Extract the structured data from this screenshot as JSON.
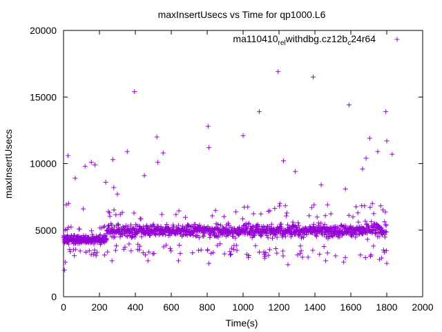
{
  "chart_data": {
    "type": "scatter",
    "title": "maxInsertUsecs vs Time for qp1000.L6",
    "xlabel": "Time(s)",
    "ylabel": "maxInsertUsecs",
    "xlim": [
      0,
      2000
    ],
    "ylim": [
      0,
      20000
    ],
    "x_ticks": [
      0,
      200,
      400,
      600,
      800,
      1000,
      1200,
      1400,
      1600,
      1800,
      2000
    ],
    "y_ticks": [
      0,
      5000,
      10000,
      15000,
      20000
    ],
    "grid": false,
    "legend_position": "top-right",
    "marker": "+",
    "series": [
      {
        "name": "ma110410_rel_withdbg.cz12b_c24r64",
        "name_parts": [
          "ma110410",
          "rel",
          "withdbg.cz12b",
          "c",
          "24r64"
        ],
        "color": "#9400d3",
        "outliers": [
          {
            "x": 5,
            "y": 2000
          },
          {
            "x": 10,
            "y": 2600
          },
          {
            "x": 15,
            "y": 6900
          },
          {
            "x": 25,
            "y": 10600
          },
          {
            "x": 28,
            "y": 7000
          },
          {
            "x": 65,
            "y": 8900
          },
          {
            "x": 110,
            "y": 6600
          },
          {
            "x": 120,
            "y": 9800
          },
          {
            "x": 155,
            "y": 10100
          },
          {
            "x": 175,
            "y": 9900
          },
          {
            "x": 235,
            "y": 8600
          },
          {
            "x": 250,
            "y": 6400
          },
          {
            "x": 275,
            "y": 10300
          },
          {
            "x": 280,
            "y": 8200
          },
          {
            "x": 300,
            "y": 7700
          },
          {
            "x": 355,
            "y": 10900
          },
          {
            "x": 395,
            "y": 15400
          },
          {
            "x": 450,
            "y": 9100
          },
          {
            "x": 520,
            "y": 12000
          },
          {
            "x": 525,
            "y": 10100
          },
          {
            "x": 555,
            "y": 10800
          },
          {
            "x": 805,
            "y": 12800
          },
          {
            "x": 810,
            "y": 11200
          },
          {
            "x": 1000,
            "y": 12100
          },
          {
            "x": 1090,
            "y": 13900
          },
          {
            "x": 1195,
            "y": 16900
          },
          {
            "x": 1225,
            "y": 10200
          },
          {
            "x": 1290,
            "y": 9400
          },
          {
            "x": 1390,
            "y": 16500
          },
          {
            "x": 1435,
            "y": 8400
          },
          {
            "x": 1590,
            "y": 14400
          },
          {
            "x": 1570,
            "y": 8100
          },
          {
            "x": 1665,
            "y": 9600
          },
          {
            "x": 1685,
            "y": 10400
          },
          {
            "x": 1705,
            "y": 11900
          },
          {
            "x": 1750,
            "y": 10900
          },
          {
            "x": 1795,
            "y": 13900
          },
          {
            "x": 1800,
            "y": 11700
          },
          {
            "x": 1830,
            "y": 10700
          },
          {
            "x": 1800,
            "y": 2500
          },
          {
            "x": 1760,
            "y": 2800
          },
          {
            "x": 1560,
            "y": 2600
          },
          {
            "x": 1460,
            "y": 2700
          },
          {
            "x": 1250,
            "y": 2400
          },
          {
            "x": 1120,
            "y": 2900
          },
          {
            "x": 810,
            "y": 2500
          },
          {
            "x": 640,
            "y": 2700
          },
          {
            "x": 470,
            "y": 2700
          },
          {
            "x": 270,
            "y": 2700
          },
          {
            "x": 1205,
            "y": 7000
          },
          {
            "x": 1395,
            "y": 6900
          },
          {
            "x": 1470,
            "y": 6900
          },
          {
            "x": 1720,
            "y": 7000
          }
        ],
        "bands": [
          {
            "x_start": 0,
            "x_end": 240,
            "center": 4300,
            "spread": 450,
            "count": 220
          },
          {
            "x_start": 240,
            "x_end": 1000,
            "center": 4950,
            "spread": 650,
            "count": 520
          },
          {
            "x_start": 1000,
            "x_end": 1800,
            "center": 5000,
            "spread": 750,
            "count": 560
          }
        ]
      }
    ]
  }
}
